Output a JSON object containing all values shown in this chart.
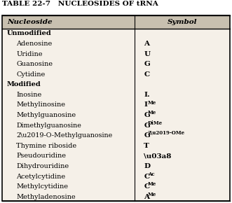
{
  "title": "TABLE 22-7   NUCLEOSIDES OF tRNA",
  "col1_header": "Nucleoside",
  "col2_header": "Symbol",
  "rows": [
    {
      "nucleoside": "Unmodified",
      "symbol": "",
      "indent": 0,
      "bold_nucleoside": true
    },
    {
      "nucleoside": "Adenosine",
      "symbol": "A",
      "indent": 1,
      "bold_nucleoside": false
    },
    {
      "nucleoside": "Uridine",
      "symbol": "U",
      "indent": 1,
      "bold_nucleoside": false
    },
    {
      "nucleoside": "Guanosine",
      "symbol": "G",
      "indent": 1,
      "bold_nucleoside": false
    },
    {
      "nucleoside": "Cytidine",
      "symbol": "C",
      "indent": 1,
      "bold_nucleoside": false
    },
    {
      "nucleoside": "Modified",
      "symbol": "",
      "indent": 0,
      "bold_nucleoside": true
    },
    {
      "nucleoside": "Inosine",
      "symbol": "I.",
      "indent": 1,
      "bold_nucleoside": false
    },
    {
      "nucleoside": "Methylinosine",
      "symbol": "I^{Me}",
      "indent": 1,
      "bold_nucleoside": false
    },
    {
      "nucleoside": "Methylguanosine",
      "symbol": "G^{Me}",
      "indent": 1,
      "bold_nucleoside": false
    },
    {
      "nucleoside": "Dimethylguanosine",
      "symbol": "G^{DiMe}",
      "indent": 1,
      "bold_nucleoside": false
    },
    {
      "nucleoside": "2\\u2019-O-Methylguanosine",
      "symbol": "G^{2\\u2019-OMe}",
      "indent": 1,
      "bold_nucleoside": false
    },
    {
      "nucleoside": "Thymine riboside",
      "symbol": "T",
      "indent": 1,
      "bold_nucleoside": false
    },
    {
      "nucleoside": "Pseudouridine",
      "symbol": "\\u03a8",
      "indent": 1,
      "bold_nucleoside": false
    },
    {
      "nucleoside": "Dihydrouridine",
      "symbol": "D",
      "indent": 1,
      "bold_nucleoside": false
    },
    {
      "nucleoside": "Acetylcytidine",
      "symbol": "C^{Ac}",
      "indent": 1,
      "bold_nucleoside": false
    },
    {
      "nucleoside": "Methylcytidine",
      "symbol": "C^{Me}",
      "indent": 1,
      "bold_nucleoside": false
    },
    {
      "nucleoside": "Methyladenosine",
      "symbol": "A^{Me}",
      "indent": 1,
      "bold_nucleoside": false
    }
  ],
  "bg_color": "#f5f0e8",
  "header_bg": "#c8c0b0",
  "border_color": "#000000",
  "title_color": "#000000",
  "col_split": 0.58
}
